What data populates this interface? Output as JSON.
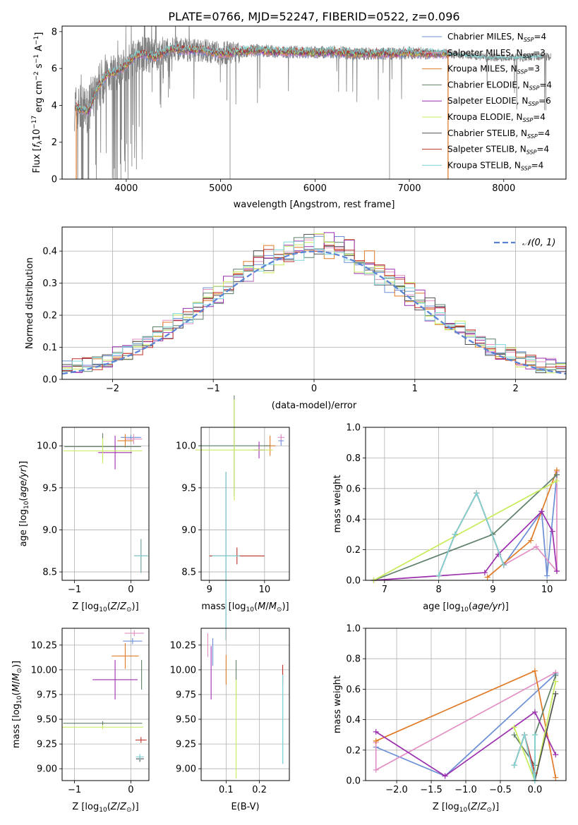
{
  "figure": {
    "title": "PLATE=0766, MJD=52247, FIBERID=0522, z=0.096"
  },
  "palette": {
    "Chabrier MILES": "#6b8fd6",
    "Salpeter MILES": "#e28fc4",
    "Kroupa MILES": "#e07b27",
    "Chabrier ELODIE": "#5f806a",
    "Salpeter ELODIE": "#9b2fae",
    "Kroupa ELODIE": "#c8ec5a",
    "Chabrier STELIB": "#505050",
    "Salpeter STELIB": "#c0302a",
    "Kroupa STELIB": "#7fd6d8",
    "data": "#808080"
  },
  "legend_spectrum": [
    {
      "model": "Chabrier MILES",
      "name": "Chabrier MILES, N",
      "sub": "SSP",
      "tail": "=4"
    },
    {
      "model": "Salpeter MILES",
      "name": "Salpeter MILES, N",
      "sub": "SSP",
      "tail": "=3"
    },
    {
      "model": "Kroupa MILES",
      "name": "Kroupa MILES, N",
      "sub": "SSP",
      "tail": "=3"
    },
    {
      "model": "Chabrier ELODIE",
      "name": "Chabrier ELODIE, N",
      "sub": "SSP",
      "tail": "=4"
    },
    {
      "model": "Salpeter ELODIE",
      "name": "Salpeter ELODIE, N",
      "sub": "SSP",
      "tail": "=6"
    },
    {
      "model": "Kroupa ELODIE",
      "name": "Kroupa ELODIE, N",
      "sub": "SSP",
      "tail": "=4"
    },
    {
      "model": "Chabrier STELIB",
      "name": "Chabrier STELIB, N",
      "sub": "SSP",
      "tail": "=4"
    },
    {
      "model": "Salpeter STELIB",
      "name": "Salpeter STELIB, N",
      "sub": "SSP",
      "tail": "=4"
    },
    {
      "model": "Kroupa STELIB",
      "name": "Kroupa STELIB, N",
      "sub": "SSP",
      "tail": "=4"
    }
  ],
  "chart_data": [
    {
      "id": "spectrum",
      "type": "line",
      "xlabel": "wavelength [Angstrom, rest frame]",
      "ylabel": "Flux [f_λ 10^-17 erg cm^-2 s^-1 A^-1]",
      "xlim": [
        3320,
        8660
      ],
      "ylim": [
        0,
        8.3
      ],
      "xticks": [
        4000,
        5000,
        6000,
        7000,
        8000
      ],
      "yticks": [
        0,
        2,
        4,
        6,
        8
      ],
      "continuum": [
        [
          3450,
          3.9
        ],
        [
          3600,
          3.7
        ],
        [
          3700,
          5.0
        ],
        [
          3800,
          5.7
        ],
        [
          3900,
          5.8
        ],
        [
          4000,
          6.2
        ],
        [
          4100,
          6.7
        ],
        [
          4200,
          6.8
        ],
        [
          4300,
          6.6
        ],
        [
          4400,
          6.9
        ],
        [
          4500,
          7.1
        ],
        [
          4600,
          7.0
        ],
        [
          4800,
          7.0
        ],
        [
          4900,
          6.9
        ],
        [
          5000,
          6.8
        ],
        [
          5200,
          6.9
        ],
        [
          5400,
          7.0
        ],
        [
          5600,
          6.9
        ],
        [
          5800,
          6.9
        ],
        [
          6000,
          6.85
        ],
        [
          6200,
          6.9
        ],
        [
          6400,
          6.8
        ],
        [
          6600,
          6.8
        ],
        [
          6800,
          6.8
        ],
        [
          7000,
          6.85
        ],
        [
          7200,
          6.8
        ],
        [
          7400,
          6.8
        ],
        [
          7600,
          6.7
        ],
        [
          7800,
          6.6
        ],
        [
          8000,
          6.6
        ],
        [
          8200,
          6.6
        ],
        [
          8400,
          6.65
        ]
      ],
      "model_range": [
        3460,
        7420
      ],
      "dips": [
        5100,
        7410,
        6790,
        3880
      ]
    },
    {
      "id": "residuals",
      "type": "line",
      "xlabel": "(data-model)/error",
      "ylabel": "Normed distribution",
      "xlim": [
        -2.5,
        2.5
      ],
      "ylim": [
        0,
        0.475
      ],
      "xticks": [
        -2,
        -1,
        0,
        1,
        2
      ],
      "yticks": [
        0,
        0.1,
        0.2,
        0.3,
        0.4
      ],
      "series": [
        {
          "name": "𝒩(0, 1)",
          "kind": "gaussian",
          "mean": 0,
          "sigma": 1,
          "color": "#5b84d6"
        }
      ],
      "histograms_from": "palette",
      "bin_width": 0.1
    },
    {
      "id": "age_vs_Z",
      "type": "scatter",
      "xlabel": "Z [log10(Z/Z☉)]",
      "ylabel": "age [log10(age/yr)]",
      "xlim": [
        -1.22,
        0.32
      ],
      "ylim": [
        8.4,
        10.22
      ],
      "xticks": [
        -1,
        0
      ],
      "yticks": [
        8.5,
        9.0,
        9.5,
        10.0
      ],
      "points": [
        {
          "model": "Chabrier MILES",
          "x": 0.0,
          "xerr": 0.18,
          "y": 10.1,
          "yerr": 0.03
        },
        {
          "model": "Salpeter MILES",
          "x": 0.05,
          "xerr": 0.15,
          "y": 10.08,
          "yerr": 0.06
        },
        {
          "model": "Kroupa MILES",
          "x": -0.1,
          "xerr": 0.14,
          "y": 10.06,
          "yerr": 0.08
        },
        {
          "model": "Chabrier ELODIE",
          "x": -0.5,
          "xerr": 0.68,
          "y": 9.99,
          "yerr": 0.16
        },
        {
          "model": "Salpeter ELODIE",
          "x": -0.28,
          "xerr": 0.3,
          "y": 9.92,
          "yerr": 0.2
        },
        {
          "model": "Kroupa ELODIE",
          "x": -0.5,
          "xerr": 0.7,
          "y": 9.94,
          "yerr": 0.15
        },
        {
          "model": "Chabrier STELIB",
          "x": 0.18,
          "xerr": 0.12,
          "y": 8.69,
          "yerr": 0.2
        },
        {
          "model": "Salpeter STELIB",
          "x": 0.18,
          "xerr": 0.12,
          "y": 8.69,
          "yerr": 0.2
        },
        {
          "model": "Kroupa STELIB",
          "x": 0.18,
          "xerr": 0.12,
          "y": 8.69,
          "yerr": 0.2
        }
      ]
    },
    {
      "id": "age_vs_mass",
      "type": "scatter",
      "xlabel": "mass [log10(M/M☉)]",
      "ylabel": "",
      "xlim": [
        8.85,
        10.45
      ],
      "ylim": [
        8.4,
        10.22
      ],
      "xticks": [
        9,
        10
      ],
      "yticks": [
        8.5,
        9.0,
        9.5,
        10.0
      ],
      "points": [
        {
          "model": "Chabrier MILES",
          "x": 10.3,
          "xerr": 0.05,
          "y": 10.06,
          "yerr": 0.06
        },
        {
          "model": "Salpeter MILES",
          "x": 10.3,
          "xerr": 0.06,
          "y": 10.1,
          "yerr": 0.04
        },
        {
          "model": "Kroupa MILES",
          "x": 10.1,
          "xerr": 0.1,
          "y": 10.0,
          "yerr": 0.12
        },
        {
          "model": "Chabrier ELODIE",
          "x": 9.45,
          "xerr": 0.65,
          "y": 10.0,
          "yerr": 0.6
        },
        {
          "model": "Salpeter ELODIE",
          "x": 9.9,
          "xerr": 0.1,
          "y": 9.95,
          "yerr": 0.1
        },
        {
          "model": "Kroupa ELODIE",
          "x": 9.45,
          "xerr": 0.7,
          "y": 9.95,
          "yerr": 0.6
        },
        {
          "model": "Chabrier STELIB",
          "x": 9.3,
          "xerr": 0.25,
          "y": 8.69,
          "yerr": 1.0
        },
        {
          "model": "Salpeter STELIB",
          "x": 9.5,
          "xerr": 0.5,
          "y": 8.69,
          "yerr": 0.1
        },
        {
          "model": "Kroupa STELIB",
          "x": 9.3,
          "xerr": 0.25,
          "y": 8.69,
          "yerr": 1.0
        }
      ]
    },
    {
      "id": "weight_vs_age",
      "type": "line",
      "xlabel": "age [log10(age/yr)]",
      "ylabel": "mass weight",
      "xlim": [
        6.65,
        10.35
      ],
      "ylim": [
        0,
        1.0
      ],
      "xticks": [
        7,
        8,
        9,
        10
      ],
      "yticks": [
        0,
        0.2,
        0.4,
        0.6,
        0.8,
        1.0
      ],
      "series": [
        {
          "model": "Chabrier MILES",
          "x": [
            9.2,
            9.9,
            10.0,
            10.18
          ],
          "y": [
            0.1,
            0.45,
            0.03,
            0.69
          ]
        },
        {
          "model": "Salpeter MILES",
          "x": [
            9.2,
            9.8,
            10.18,
            10.18
          ],
          "y": [
            0.1,
            0.22,
            0.06,
            0.71
          ]
        },
        {
          "model": "Kroupa MILES",
          "x": [
            8.9,
            9.7,
            10.18
          ],
          "y": [
            0.02,
            0.26,
            0.72
          ]
        },
        {
          "model": "Chabrier ELODIE",
          "x": [
            6.8,
            9.0,
            10.18
          ],
          "y": [
            0.0,
            0.3,
            0.69
          ]
        },
        {
          "model": "Salpeter ELODIE",
          "x": [
            6.8,
            8.85,
            9.1,
            9.9,
            10.1,
            10.18
          ],
          "y": [
            0.0,
            0.05,
            0.17,
            0.45,
            0.32,
            0.06
          ]
        },
        {
          "model": "Kroupa ELODIE",
          "x": [
            6.8,
            10.18
          ],
          "y": [
            0.0,
            0.65
          ]
        },
        {
          "model": "Chabrier STELIB",
          "x": [
            8.0,
            8.3,
            8.7,
            9.2,
            9.2
          ],
          "y": [
            0.03,
            0.3,
            0.57,
            0.1,
            0.1
          ]
        },
        {
          "model": "Salpeter STELIB",
          "x": [
            8.0,
            8.3,
            8.7,
            9.2
          ],
          "y": [
            0.03,
            0.3,
            0.57,
            0.1
          ]
        },
        {
          "model": "Kroupa STELIB",
          "x": [
            8.0,
            8.3,
            8.7,
            9.2
          ],
          "y": [
            0.03,
            0.3,
            0.57,
            0.1
          ]
        }
      ]
    },
    {
      "id": "mass_vs_Z",
      "type": "scatter",
      "xlabel": "Z [log10(Z/Z☉)]",
      "ylabel": "mass [log10(M/M☉)]",
      "xlim": [
        -1.22,
        0.32
      ],
      "ylim": [
        8.88,
        10.42
      ],
      "xticks": [
        -1,
        0
      ],
      "yticks": [
        9.0,
        9.25,
        9.5,
        9.75,
        10.0,
        10.25
      ],
      "points": [
        {
          "model": "Chabrier MILES",
          "x": 0.03,
          "xerr": 0.17,
          "y": 10.29,
          "yerr": 0.03
        },
        {
          "model": "Salpeter MILES",
          "x": 0.06,
          "xerr": 0.17,
          "y": 10.37,
          "yerr": 0.03
        },
        {
          "model": "Kroupa MILES",
          "x": -0.1,
          "xerr": 0.24,
          "y": 10.14,
          "yerr": 0.13
        },
        {
          "model": "Chabrier ELODIE",
          "x": -0.5,
          "xerr": 0.7,
          "y": 9.46,
          "yerr": 0.02
        },
        {
          "model": "Salpeter ELODIE",
          "x": -0.28,
          "xerr": 0.4,
          "y": 9.9,
          "yerr": 0.2
        },
        {
          "model": "Kroupa ELODIE",
          "x": -0.5,
          "xerr": 0.72,
          "y": 9.42,
          "yerr": 0.02
        },
        {
          "model": "Chabrier STELIB",
          "x": 0.16,
          "xerr": 0.07,
          "y": 9.1,
          "yerr": 0.03
        },
        {
          "model": "Salpeter STELIB",
          "x": 0.18,
          "xerr": 0.1,
          "y": 9.29,
          "yerr": 0.03
        },
        {
          "model": "Kroupa STELIB",
          "x": 0.16,
          "xerr": 0.07,
          "y": 9.12,
          "yerr": 0.03
        },
        {
          "model": "Chabrier ELODIE",
          "x": 0.19,
          "xerr": 0.0,
          "y": 9.95,
          "yerr": 0.15
        }
      ]
    },
    {
      "id": "mass_vs_EBV",
      "type": "scatter",
      "xlabel": "E(B-V)",
      "ylabel": "",
      "xlim": [
        0.025,
        0.29
      ],
      "ylim": [
        8.88,
        10.42
      ],
      "xticks": [
        0.1,
        0.2
      ],
      "yticks": [
        9.0,
        9.25,
        9.5,
        9.75,
        10.0,
        10.25
      ],
      "points": [
        {
          "model": "Chabrier MILES",
          "x": 0.06,
          "xerr": 0,
          "y": 10.18,
          "yerr": 0.14
        },
        {
          "model": "Salpeter MILES",
          "x": 0.045,
          "xerr": 0,
          "y": 10.25,
          "yerr": 0.12
        },
        {
          "model": "Kroupa MILES",
          "x": 0.1,
          "xerr": 0,
          "y": 10.0,
          "yerr": 0.15
        },
        {
          "model": "Chabrier ELODIE",
          "x": 0.13,
          "xerr": 0,
          "y": 9.9,
          "yerr": 0.2
        },
        {
          "model": "Salpeter ELODIE",
          "x": 0.055,
          "xerr": 0,
          "y": 9.97,
          "yerr": 0.27
        },
        {
          "model": "Kroupa ELODIE",
          "x": 0.13,
          "xerr": 0,
          "y": 9.4,
          "yerr": 0.5
        },
        {
          "model": "Chabrier STELIB",
          "x": 0.27,
          "xerr": 0,
          "y": 9.5,
          "yerr": 0.45
        },
        {
          "model": "Salpeter STELIB",
          "x": 0.27,
          "xerr": 0,
          "y": 9.95,
          "yerr": 0.1
        },
        {
          "model": "Kroupa STELIB",
          "x": 0.27,
          "xerr": 0,
          "y": 9.5,
          "yerr": 0.45
        }
      ]
    },
    {
      "id": "weight_vs_Z",
      "type": "line",
      "xlabel": "Z [log10(Z/Z☉)]",
      "ylabel": "mass weight",
      "xlim": [
        -2.45,
        0.45
      ],
      "ylim": [
        0,
        1.0
      ],
      "xticks": [
        -2.0,
        -1.5,
        -1.0,
        -0.5,
        0.0
      ],
      "yticks": [
        0,
        0.2,
        0.4,
        0.6,
        0.8,
        1.0
      ],
      "series": [
        {
          "model": "Chabrier MILES",
          "x": [
            -2.3,
            -1.3,
            0.3
          ],
          "y": [
            0.22,
            0.03,
            0.7
          ]
        },
        {
          "model": "Salpeter MILES",
          "x": [
            -2.3,
            -2.3,
            0.3
          ],
          "y": [
            0.25,
            0.07,
            0.71
          ]
        },
        {
          "model": "Kroupa MILES",
          "x": [
            -2.3,
            0.0,
            0.3
          ],
          "y": [
            0.26,
            0.72,
            0.02
          ]
        },
        {
          "model": "Chabrier ELODIE",
          "x": [
            -0.3,
            0.0,
            0.0,
            0.3
          ],
          "y": [
            0.3,
            0.1,
            0.3,
            0.69
          ]
        },
        {
          "model": "Salpeter ELODIE",
          "x": [
            -2.3,
            -1.3,
            0.0,
            0.3
          ],
          "y": [
            0.32,
            0.03,
            0.45,
            0.17
          ]
        },
        {
          "model": "Kroupa ELODIE",
          "x": [
            -0.3,
            0.0,
            0.3
          ],
          "y": [
            0.35,
            0.0,
            0.65
          ]
        },
        {
          "model": "Chabrier STELIB",
          "x": [
            -0.3,
            -0.15,
            0.0,
            0.3
          ],
          "y": [
            0.1,
            0.3,
            0.0,
            0.57
          ]
        },
        {
          "model": "Salpeter STELIB",
          "x": [
            -0.3,
            -0.15,
            0.0
          ],
          "y": [
            0.1,
            0.3,
            0.05
          ]
        },
        {
          "model": "Kroupa STELIB",
          "x": [
            -0.3,
            -0.15,
            0.0,
            0.0
          ],
          "y": [
            0.1,
            0.3,
            0.0,
            0.3
          ]
        }
      ]
    }
  ]
}
